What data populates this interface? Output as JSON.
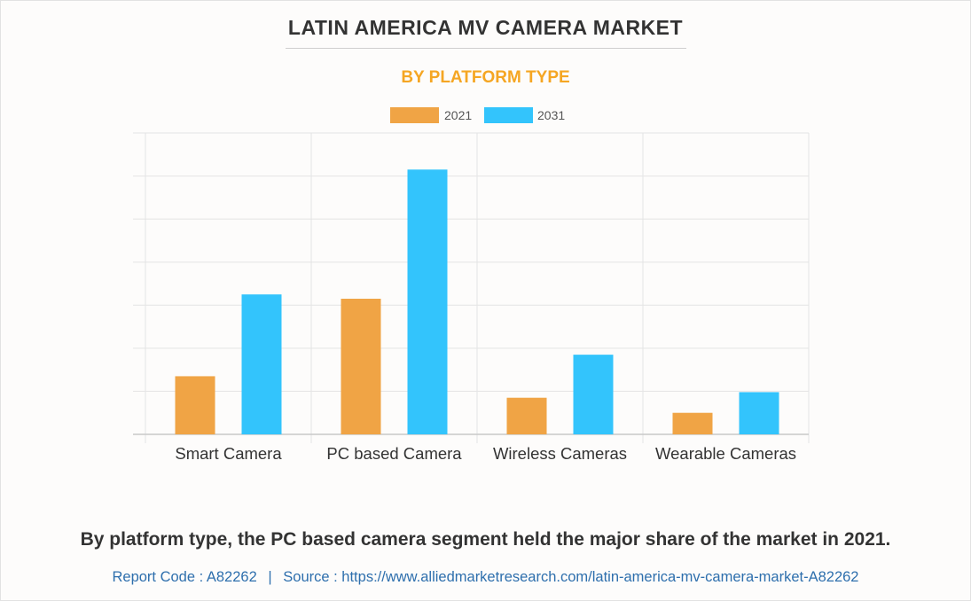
{
  "header": {
    "title": "LATIN AMERICA MV CAMERA MARKET",
    "subtitle": "BY PLATFORM TYPE"
  },
  "footer": {
    "caption": "By platform type, the PC based camera segment held the major share of the market in 2021.",
    "report_code_label": "Report Code : A82262",
    "separator": "|",
    "source_label": "Source : https://www.alliedmarketresearch.com/latin-america-mv-camera-market-A82262"
  },
  "colors": {
    "subtitle": "#f5a623",
    "series_2021": "#f0a445",
    "series_2031": "#33c4fc",
    "grid": "#e4e4e4",
    "axis": "#c8c8c8",
    "tick_label": "#333333",
    "source_link": "#2e6fad"
  },
  "chart_data": {
    "type": "bar",
    "title": "LATIN AMERICA MV CAMERA MARKET",
    "subtitle": "BY PLATFORM TYPE",
    "xlabel": "",
    "ylabel": "",
    "categories": [
      "Smart Camera",
      "PC based Camera",
      "Wireless Cameras",
      "Wearable Cameras"
    ],
    "series": [
      {
        "name": "2021",
        "color": "#f0a445",
        "values": [
          13.5,
          31.5,
          8.5,
          5.0
        ]
      },
      {
        "name": "2031",
        "color": "#33c4fc",
        "values": [
          32.5,
          61.5,
          18.5,
          9.8
        ]
      }
    ],
    "ylim": [
      0,
      70
    ],
    "y_grid_step": 10,
    "y_tick_labels_shown": false,
    "grid": true,
    "legend_position": "top-center"
  }
}
